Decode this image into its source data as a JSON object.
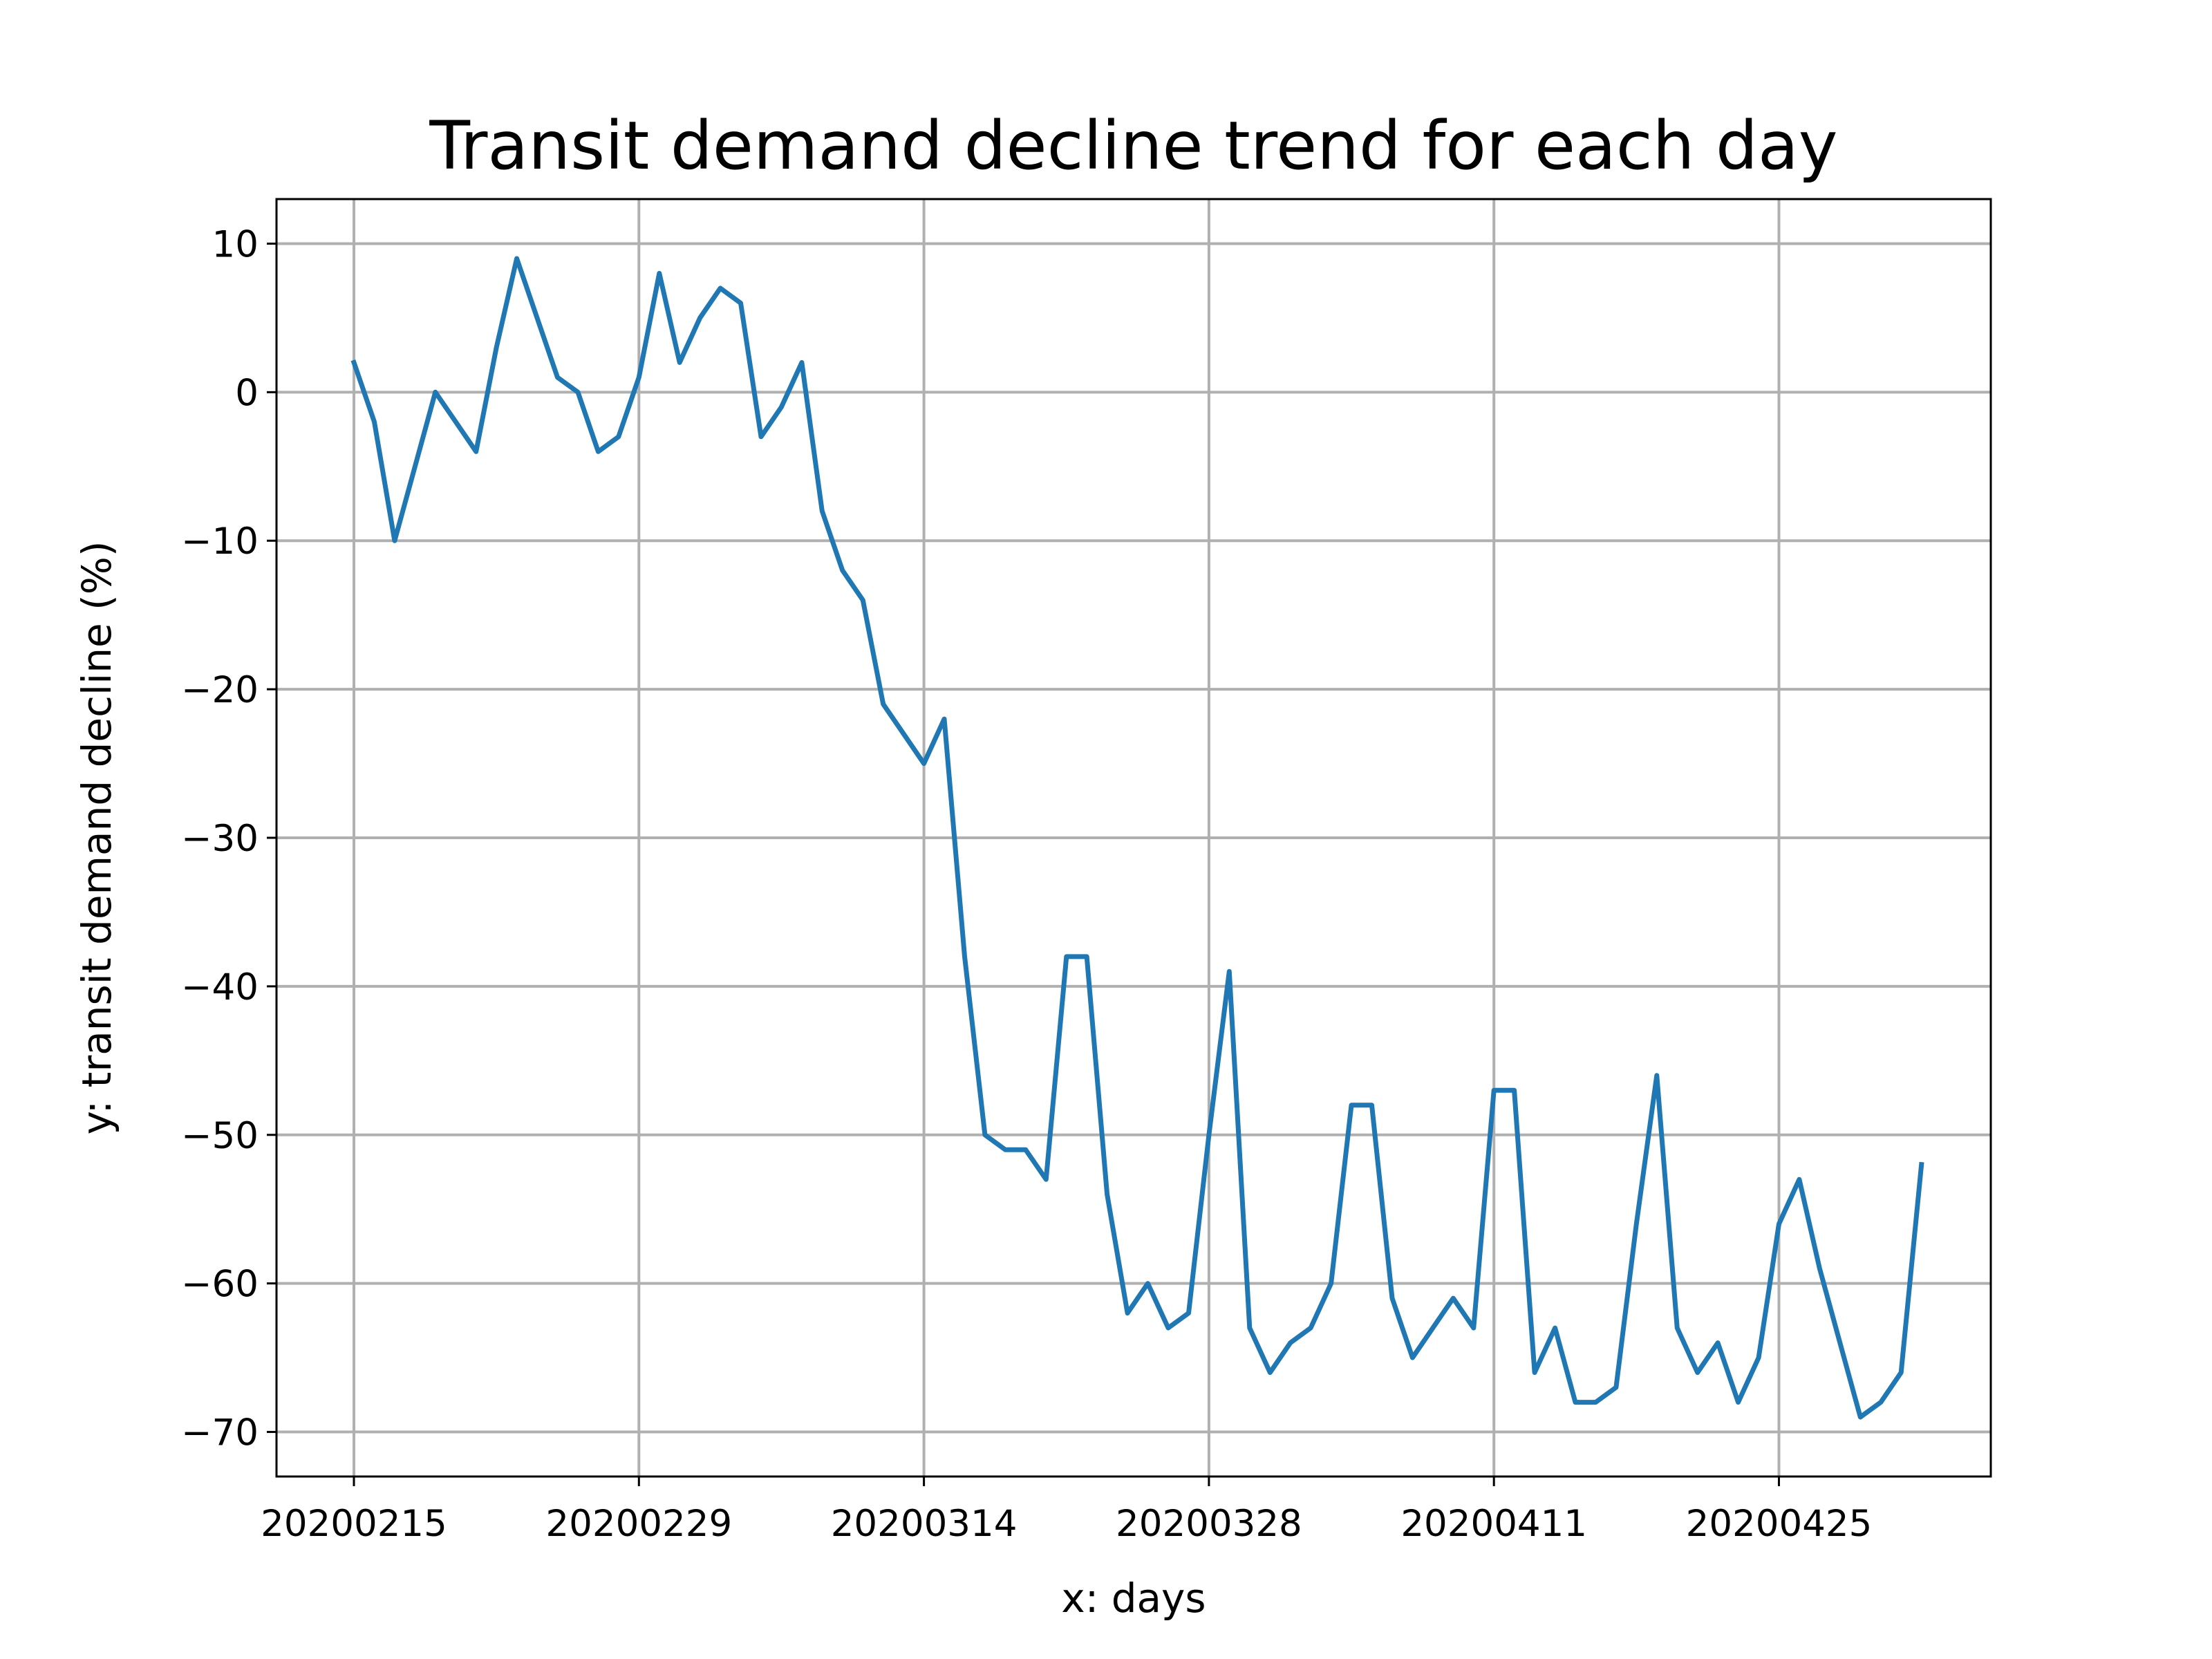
{
  "chart_data": {
    "type": "line",
    "title": "Transit demand decline trend for each day",
    "xlabel": "x: days",
    "ylabel": "y: transit demand decline (%)",
    "ylim": [
      -73,
      13
    ],
    "yticks": [
      10,
      0,
      -10,
      -20,
      -30,
      -40,
      -50,
      -60,
      -70
    ],
    "ytick_labels": [
      "10",
      "0",
      "−10",
      "−20",
      "−30",
      "−40",
      "−50",
      "−60",
      "−70"
    ],
    "xtick_labels": [
      "20200215",
      "20200229",
      "20200314",
      "20200328",
      "20200411",
      "20200425"
    ],
    "grid": true,
    "line_color": "#1f77b4",
    "series": [
      {
        "x": [
          "20200215",
          "20200216",
          "20200217",
          "20200218",
          "20200219",
          "20200220",
          "20200221",
          "20200222",
          "20200223",
          "20200224",
          "20200225",
          "20200226",
          "20200227",
          "20200228",
          "20200229",
          "20200301",
          "20200302",
          "20200303",
          "20200304",
          "20200305",
          "20200306",
          "20200307",
          "20200308",
          "20200309",
          "20200310",
          "20200311",
          "20200312",
          "20200313",
          "20200314",
          "20200315",
          "20200316",
          "20200317",
          "20200318",
          "20200319",
          "20200320",
          "20200321",
          "20200322",
          "20200323",
          "20200324",
          "20200325",
          "20200326",
          "20200327",
          "20200328",
          "20200329",
          "20200330",
          "20200331",
          "20200401",
          "20200402",
          "20200403",
          "20200404",
          "20200405",
          "20200406",
          "20200407",
          "20200408",
          "20200409",
          "20200410",
          "20200411",
          "20200412",
          "20200413",
          "20200414",
          "20200415",
          "20200416",
          "20200417",
          "20200418",
          "20200419",
          "20200420",
          "20200421",
          "20200422",
          "20200423",
          "20200424",
          "20200425",
          "20200426",
          "20200427",
          "20200428",
          "20200429",
          "20200430",
          "20200501",
          "20200502"
        ],
        "values": [
          2,
          -2,
          -10,
          -5,
          0,
          -2,
          -4,
          3,
          9,
          5,
          1,
          0,
          -4,
          -3,
          1,
          8,
          2,
          5,
          7,
          6,
          -3,
          -1,
          2,
          -8,
          -12,
          -14,
          -21,
          -23,
          -25,
          -22,
          -38,
          -50,
          -51,
          -51,
          -53,
          -38,
          -38,
          -54,
          -62,
          -60,
          -63,
          -62,
          -50,
          -39,
          -63,
          -66,
          -64,
          -63,
          -60,
          -48,
          -48,
          -61,
          -65,
          -63,
          -61,
          -63,
          -47,
          -47,
          -66,
          -63,
          -68,
          -68,
          -67,
          -56,
          -46,
          -63,
          -66,
          -64,
          -68,
          -65,
          -56,
          -53,
          -59,
          -64,
          -69,
          -68,
          -66,
          -52
        ]
      }
    ]
  }
}
